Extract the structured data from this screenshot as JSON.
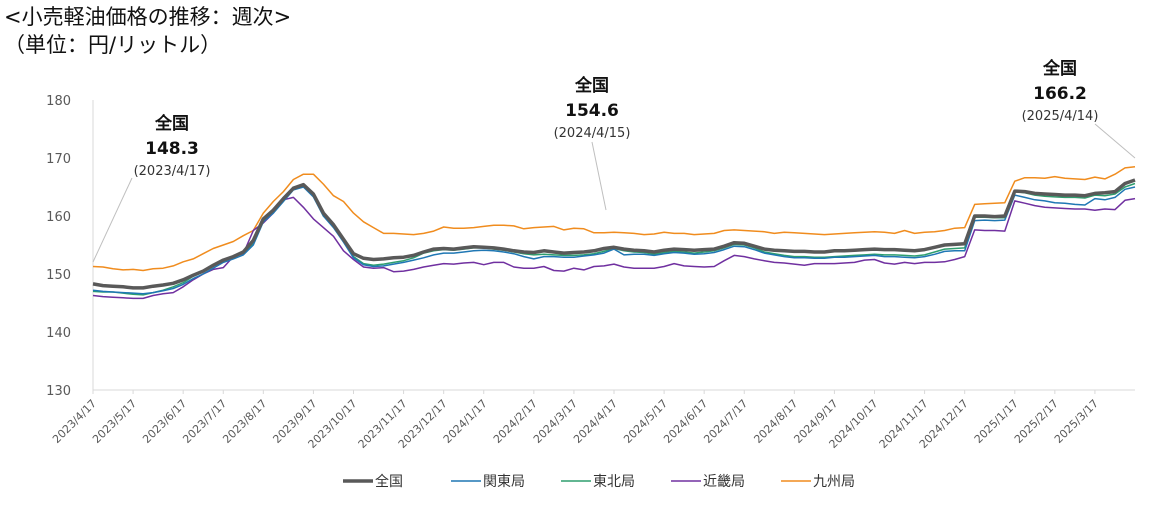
{
  "chart_data": {
    "type": "line",
    "title": "<小売軽油価格の推移：週次>",
    "subtitle": "（単位：円/リットル）",
    "categories": [
      "2023/4/17",
      null,
      null,
      null,
      "2023/5/17",
      null,
      null,
      null,
      null,
      "2023/6/17",
      null,
      null,
      null,
      "2023/7/17",
      null,
      null,
      null,
      "2023/8/17",
      null,
      null,
      null,
      null,
      "2023/9/17",
      null,
      null,
      null,
      "2023/10/17",
      null,
      null,
      null,
      null,
      "2023/11/17",
      null,
      null,
      null,
      "2023/12/17",
      null,
      null,
      null,
      "2024/1/17",
      null,
      null,
      null,
      null,
      "2024/2/17",
      null,
      null,
      null,
      "2024/3/17",
      null,
      null,
      null,
      "2024/4/17",
      null,
      null,
      null,
      null,
      "2024/5/17",
      null,
      null,
      null,
      "2024/6/17",
      null,
      null,
      null,
      "2024/7/17",
      null,
      null,
      null,
      null,
      "2024/8/17",
      null,
      null,
      null,
      "2024/9/17",
      null,
      null,
      null,
      "2024/10/17",
      null,
      null,
      null,
      null,
      "2024/11/17",
      null,
      null,
      null,
      "2024/12/17",
      null,
      null,
      null,
      null,
      "2025/1/17",
      null,
      null,
      null,
      "2025/2/17",
      null,
      null,
      null,
      "2025/3/17",
      null,
      null,
      null,
      null
    ],
    "series": [
      {
        "name": "全国",
        "color": "#595959",
        "width": 3.5,
        "values": [
          148.3,
          148.0,
          147.9,
          147.8,
          147.6,
          147.6,
          147.9,
          148.1,
          148.4,
          149.0,
          149.8,
          150.5,
          151.5,
          152.4,
          153.0,
          153.8,
          155.8,
          159.5,
          161.0,
          163.0,
          164.8,
          165.4,
          163.8,
          160.5,
          158.5,
          156.0,
          153.5,
          152.7,
          152.5,
          152.6,
          152.8,
          152.9,
          153.2,
          153.8,
          154.3,
          154.4,
          154.3,
          154.5,
          154.7,
          154.6,
          154.5,
          154.3,
          154.0,
          153.8,
          153.7,
          154.0,
          153.8,
          153.6,
          153.7,
          153.8,
          154.0,
          154.4,
          154.6,
          154.3,
          154.1,
          154.0,
          153.8,
          154.1,
          154.3,
          154.2,
          154.1,
          154.2,
          154.3,
          154.8,
          155.4,
          155.3,
          154.8,
          154.3,
          154.1,
          154.0,
          153.9,
          153.9,
          153.8,
          153.8,
          154.0,
          154.0,
          154.1,
          154.2,
          154.3,
          154.2,
          154.2,
          154.1,
          154.0,
          154.2,
          154.6,
          155.0,
          155.1,
          155.2,
          160.0,
          160.0,
          159.9,
          160.0,
          164.3,
          164.2,
          163.9,
          163.8,
          163.7,
          163.6,
          163.6,
          163.5,
          163.9,
          164.0,
          164.2,
          165.6,
          166.2
        ]
      },
      {
        "name": "関東局",
        "color": "#1f77b4",
        "width": 1.5,
        "values": [
          147.2,
          147.0,
          146.9,
          146.8,
          146.7,
          146.6,
          146.8,
          147.1,
          147.5,
          148.2,
          149.2,
          150.0,
          151.0,
          152.0,
          152.6,
          153.3,
          155.0,
          159.0,
          160.5,
          162.5,
          164.5,
          165.0,
          163.3,
          160.0,
          158.0,
          155.5,
          152.8,
          151.6,
          151.3,
          151.4,
          151.7,
          152.0,
          152.4,
          152.8,
          153.3,
          153.6,
          153.6,
          153.8,
          154.0,
          154.1,
          154.0,
          153.8,
          153.5,
          153.0,
          152.6,
          153.0,
          153.0,
          152.9,
          152.9,
          153.1,
          153.3,
          153.6,
          154.3,
          153.3,
          153.4,
          153.4,
          153.2,
          153.5,
          153.7,
          153.6,
          153.4,
          153.5,
          153.7,
          154.2,
          154.8,
          154.7,
          154.2,
          153.6,
          153.3,
          153.0,
          152.8,
          152.8,
          152.7,
          152.7,
          152.9,
          152.9,
          153.0,
          153.1,
          153.2,
          153.0,
          153.0,
          152.9,
          152.8,
          153.0,
          153.4,
          153.9,
          154.0,
          154.0,
          159.2,
          159.3,
          159.2,
          159.3,
          163.6,
          163.2,
          162.8,
          162.6,
          162.3,
          162.2,
          162.0,
          161.9,
          163.0,
          162.8,
          163.2,
          164.6,
          165.0
        ]
      },
      {
        "name": "東北局",
        "color": "#2e9e6e",
        "width": 1.5,
        "values": [
          147.0,
          146.9,
          146.9,
          146.7,
          146.5,
          146.4,
          146.8,
          147.2,
          147.8,
          148.5,
          149.6,
          150.4,
          151.6,
          152.4,
          153.0,
          153.6,
          155.3,
          159.3,
          160.8,
          162.8,
          164.6,
          165.2,
          163.5,
          160.0,
          158.2,
          155.8,
          153.0,
          151.8,
          151.5,
          151.7,
          152.0,
          152.3,
          152.8,
          153.6,
          154.0,
          154.2,
          154.1,
          154.3,
          154.5,
          154.5,
          154.3,
          154.1,
          153.8,
          153.5,
          153.3,
          153.4,
          153.3,
          153.2,
          153.2,
          153.3,
          153.5,
          153.9,
          154.4,
          154.0,
          153.8,
          153.7,
          153.4,
          153.7,
          153.9,
          153.8,
          153.6,
          153.8,
          154.0,
          154.5,
          155.1,
          155.0,
          154.5,
          153.8,
          153.5,
          153.2,
          153.0,
          153.0,
          152.9,
          152.9,
          153.0,
          153.1,
          153.2,
          153.3,
          153.4,
          153.3,
          153.3,
          153.2,
          153.1,
          153.3,
          153.8,
          154.3,
          154.4,
          154.5,
          159.8,
          159.8,
          159.7,
          159.7,
          164.2,
          164.0,
          163.6,
          163.4,
          163.3,
          163.2,
          163.2,
          163.1,
          163.6,
          163.5,
          163.8,
          165.0,
          165.6
        ]
      },
      {
        "name": "近畿局",
        "color": "#7030a0",
        "width": 1.5,
        "values": [
          146.3,
          146.1,
          146.0,
          145.9,
          145.8,
          145.8,
          146.3,
          146.6,
          146.8,
          147.8,
          149.0,
          150.0,
          150.8,
          151.1,
          153.0,
          153.5,
          157.5,
          158.8,
          160.5,
          162.8,
          163.2,
          161.5,
          159.5,
          158.0,
          156.5,
          154.0,
          152.5,
          151.2,
          151.0,
          151.1,
          150.4,
          150.5,
          150.8,
          151.2,
          151.5,
          151.8,
          151.7,
          151.9,
          152.0,
          151.6,
          152.0,
          152.0,
          151.2,
          151.0,
          151.0,
          151.3,
          150.6,
          150.5,
          151.0,
          150.7,
          151.3,
          151.4,
          151.7,
          151.2,
          151.0,
          151.0,
          151.0,
          151.3,
          151.8,
          151.4,
          151.3,
          151.2,
          151.3,
          152.3,
          153.2,
          153.0,
          152.6,
          152.3,
          152.0,
          151.9,
          151.7,
          151.5,
          151.8,
          151.8,
          151.8,
          151.9,
          152.0,
          152.4,
          152.5,
          151.9,
          151.7,
          152.0,
          151.8,
          152.0,
          152.0,
          152.1,
          152.5,
          153.0,
          157.6,
          157.5,
          157.5,
          157.4,
          162.6,
          162.2,
          161.8,
          161.5,
          161.4,
          161.3,
          161.2,
          161.2,
          161.0,
          161.2,
          161.1,
          162.7,
          163.0
        ]
      },
      {
        "name": "九州局",
        "color": "#f08c1e",
        "width": 1.5,
        "values": [
          151.3,
          151.2,
          150.9,
          150.7,
          150.8,
          150.6,
          150.9,
          151.0,
          151.4,
          152.1,
          152.6,
          153.5,
          154.4,
          155.0,
          155.6,
          156.6,
          157.5,
          160.5,
          162.5,
          164.2,
          166.3,
          167.2,
          167.2,
          165.5,
          163.5,
          162.5,
          160.5,
          159.0,
          158.0,
          157.0,
          157.0,
          156.9,
          156.8,
          157.0,
          157.4,
          158.1,
          157.9,
          157.9,
          158.0,
          158.2,
          158.4,
          158.4,
          158.3,
          157.8,
          158.0,
          158.1,
          158.2,
          157.6,
          157.9,
          157.8,
          157.1,
          157.1,
          157.2,
          157.1,
          157.0,
          156.8,
          156.9,
          157.2,
          157.0,
          157.0,
          156.8,
          156.9,
          157.0,
          157.5,
          157.6,
          157.5,
          157.4,
          157.3,
          157.0,
          157.2,
          157.1,
          157.0,
          156.9,
          156.8,
          156.9,
          157.0,
          157.1,
          157.2,
          157.3,
          157.2,
          157.0,
          157.5,
          157.0,
          157.2,
          157.3,
          157.5,
          157.9,
          158.0,
          162.0,
          162.1,
          162.2,
          162.3,
          166.0,
          166.6,
          166.6,
          166.5,
          166.8,
          166.5,
          166.4,
          166.3,
          166.7,
          166.4,
          167.2,
          168.3,
          168.5
        ]
      }
    ],
    "ylim": [
      130,
      180
    ],
    "yticks": [
      130,
      140,
      150,
      160,
      170,
      180
    ],
    "grid": false,
    "legend": "bottom",
    "annotations": [
      {
        "label": "全国",
        "value": 148.3,
        "date": "(2023/4/17)"
      },
      {
        "label": "全国",
        "value": 154.6,
        "date": "(2024/4/15)"
      },
      {
        "label": "全国",
        "value": 166.2,
        "date": "(2025/4/14)"
      }
    ]
  }
}
